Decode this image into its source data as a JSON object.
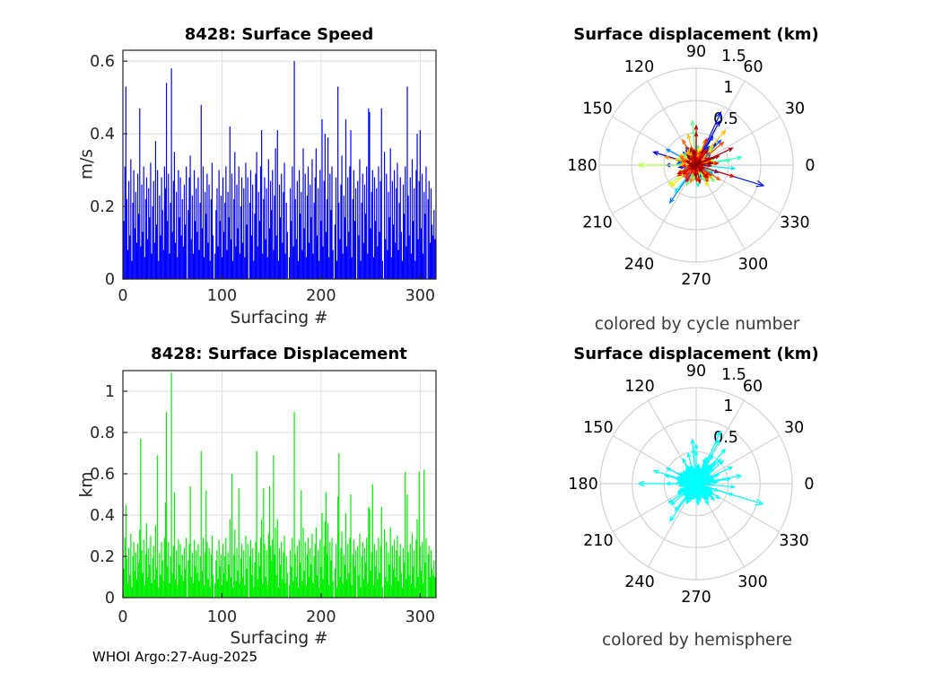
{
  "figure": {
    "footer": "WHOI Argo:27-Aug-2025"
  },
  "titles": {
    "speed": "8428: Surface Speed",
    "polar_top": "Surface displacement (km)",
    "displacement": "8428: Surface Displacement",
    "polar_bottom": "Surface displacement (km)"
  },
  "captions": {
    "polar_top": "colored by cycle number",
    "polar_bottom": "colored by hemisphere"
  },
  "axis_labels": {
    "speed_y": "m/s",
    "speed_x": "Surfacing #",
    "displacement_y": "km",
    "displacement_x": "Surfacing #"
  },
  "colors": {
    "speed_bar": "#0000FF",
    "displacement_bar": "#00EE00",
    "hemisphere_arrow": "#00FFFF",
    "grid": "#DCDCDC",
    "polar_grid": "#D2D2D2",
    "axis_box": "#262626",
    "tick_text": "#262626",
    "polar_text": "#000000"
  },
  "chart_data": [
    {
      "id": "speed",
      "type": "bar",
      "title": "8428: Surface Speed",
      "xlabel": "Surfacing #",
      "ylabel": "m/s",
      "xlim": [
        0,
        316
      ],
      "ylim": [
        0,
        0.63
      ],
      "xticks": [
        0,
        100,
        200,
        300
      ],
      "yticks": [
        0,
        0.2,
        0.4,
        0.6
      ],
      "grid": true,
      "bar_color": "#0000FF",
      "x_is_index": true,
      "values_ref": "speed_ms"
    },
    {
      "id": "polar_cycle",
      "type": "polar-quiver",
      "title": "Surface displacement (km)",
      "caption": "colored by cycle number",
      "rlim": [
        0,
        1.5
      ],
      "rticks": [
        0.5,
        1,
        1.5
      ],
      "theta_ticks_deg": [
        0,
        30,
        60,
        90,
        120,
        150,
        180,
        210,
        240,
        270,
        300,
        330
      ],
      "colormap": "jet",
      "theta_ref": "direction_deg",
      "r_ref": "displacement_km"
    },
    {
      "id": "displacement",
      "type": "bar",
      "title": "8428: Surface Displacement",
      "xlabel": "Surfacing #",
      "ylabel": "km",
      "xlim": [
        0,
        316
      ],
      "ylim": [
        0,
        1.1
      ],
      "xticks": [
        0,
        100,
        200,
        300
      ],
      "yticks": [
        0,
        0.2,
        0.4,
        0.6,
        0.8,
        1
      ],
      "grid": true,
      "bar_color": "#00EE00",
      "x_is_index": true,
      "values_ref": "displacement_km"
    },
    {
      "id": "polar_hemisphere",
      "type": "polar-quiver",
      "title": "Surface displacement (km)",
      "caption": "colored by hemisphere",
      "rlim": [
        0,
        1.5
      ],
      "rticks": [
        0.5,
        1,
        1.5
      ],
      "theta_ticks_deg": [
        0,
        30,
        60,
        90,
        120,
        150,
        180,
        210,
        240,
        270,
        300,
        330
      ],
      "arrow_color": "#00FFFF",
      "theta_ref": "direction_deg",
      "r_ref": "displacement_km"
    }
  ],
  "series": {
    "speed_ms": [
      0.16,
      0.31,
      0.53,
      0.22,
      0.08,
      0.27,
      0.12,
      0.33,
      0.05,
      0.21,
      0.3,
      0.14,
      0.24,
      0.1,
      0.29,
      0.18,
      0.47,
      0.09,
      0.26,
      0.13,
      0.31,
      0.06,
      0.22,
      0.28,
      0.11,
      0.25,
      0.17,
      0.32,
      0.07,
      0.2,
      0.27,
      0.1,
      0.38,
      0.15,
      0.3,
      0.05,
      0.23,
      0.12,
      0.28,
      0.19,
      0.08,
      0.31,
      0.25,
      0.54,
      0.16,
      0.29,
      0.07,
      0.21,
      0.58,
      0.13,
      0.27,
      0.35,
      0.1,
      0.24,
      0.06,
      0.3,
      0.17,
      0.28,
      0.12,
      0.22,
      0.09,
      0.26,
      0.15,
      0.31,
      0.0,
      0.19,
      0.28,
      0.34,
      0.11,
      0.23,
      0.07,
      0.3,
      0.16,
      0.25,
      0.13,
      0.28,
      0.08,
      0.21,
      0.48,
      0.14,
      0.31,
      0.06,
      0.24,
      0.18,
      0.29,
      0.1,
      0.26,
      0.05,
      0.22,
      0.32,
      0.12,
      0.0,
      0.07,
      0.19,
      0.25,
      0.09,
      0.3,
      0.16,
      0.23,
      0.06,
      0.28,
      0.13,
      0.21,
      0.31,
      0.08,
      0.24,
      0.17,
      0.42,
      0.11,
      0.29,
      0.05,
      0.22,
      0.35,
      0.09,
      0.26,
      0.14,
      0.31,
      0.07,
      0.2,
      0.28,
      0.1,
      0.25,
      0.06,
      0.32,
      0.15,
      0.28,
      0.0,
      0.21,
      0.3,
      0.12,
      0.26,
      0.05,
      0.18,
      0.29,
      0.35,
      0.09,
      0.24,
      0.16,
      0.31,
      0.41,
      0.07,
      0.22,
      0.28,
      0.11,
      0.25,
      0.06,
      0.33,
      0.14,
      0.27,
      0.19,
      0.3,
      0.08,
      0.23,
      0.36,
      0.12,
      0.41,
      0.05,
      0.26,
      0.17,
      0.29,
      0.1,
      0.24,
      0.32,
      0.07,
      0.21,
      0.13,
      0.0,
      0.06,
      0.25,
      0.16,
      0.31,
      0.09,
      0.6,
      0.22,
      0.11,
      0.27,
      0.05,
      0.3,
      0.18,
      0.24,
      0.08,
      0.36,
      0.14,
      0.29,
      0.06,
      0.23,
      0.31,
      0.1,
      0.26,
      0.17,
      0.33,
      0.07,
      0.21,
      0.28,
      0.36,
      0.12,
      0.25,
      0.05,
      0.3,
      0.16,
      0.44,
      0.09,
      0.27,
      0.4,
      0.13,
      0.22,
      0.39,
      0.06,
      0.29,
      0.19,
      0.31,
      0.08,
      0.0,
      0.15,
      0.28,
      0.05,
      0.53,
      0.21,
      0.11,
      0.26,
      0.34,
      0.07,
      0.23,
      0.17,
      0.44,
      0.09,
      0.28,
      0.13,
      0.31,
      0.41,
      0.06,
      0.22,
      0.3,
      0.16,
      0.25,
      0.0,
      0.27,
      0.12,
      0.33,
      0.05,
      0.21,
      0.29,
      0.1,
      0.26,
      0.18,
      0.31,
      0.07,
      0.47,
      0.46,
      0.14,
      0.24,
      0.3,
      0.06,
      0.28,
      0.16,
      0.25,
      0.09,
      0.31,
      0.13,
      0.27,
      0.47,
      0.05,
      0.0,
      0.35,
      0.11,
      0.29,
      0.08,
      0.24,
      0.17,
      0.36,
      0.06,
      0.27,
      0.15,
      0.3,
      0.1,
      0.25,
      0.32,
      0.08,
      0.21,
      0.28,
      0.13,
      0.05,
      0.26,
      0.18,
      0.31,
      0.09,
      0.53,
      0.23,
      0.12,
      0.28,
      0.07,
      0.33,
      0.16,
      0.25,
      0.05,
      0.3,
      0.4,
      0.11,
      0.27,
      0.41,
      0.14,
      0.29,
      0.07,
      0.24,
      0.18,
      0.31,
      0.0,
      0.22,
      0.27,
      0.1,
      0.25,
      0.15,
      0.12,
      0.19,
      0.11
    ],
    "displacement_km": [
      0.14,
      0.29,
      0.45,
      0.19,
      0.07,
      0.24,
      0.11,
      0.31,
      0.05,
      0.2,
      0.27,
      0.13,
      0.22,
      0.09,
      0.26,
      0.17,
      0.33,
      0.77,
      0.23,
      0.12,
      0.28,
      0.06,
      0.21,
      0.36,
      0.1,
      0.24,
      0.16,
      0.3,
      0.07,
      0.19,
      0.25,
      0.09,
      0.35,
      0.14,
      0.69,
      0.05,
      0.22,
      0.11,
      0.27,
      0.18,
      0.08,
      0.29,
      0.46,
      0.9,
      0.15,
      0.27,
      0.07,
      0.2,
      1.09,
      0.12,
      0.25,
      0.51,
      0.09,
      0.23,
      0.06,
      0.28,
      0.16,
      0.26,
      0.11,
      0.21,
      0.08,
      0.24,
      0.14,
      0.29,
      0.0,
      0.18,
      0.26,
      0.54,
      0.1,
      0.22,
      0.07,
      0.28,
      0.15,
      0.23,
      0.12,
      0.26,
      0.08,
      0.2,
      0.71,
      0.13,
      0.29,
      0.06,
      0.22,
      0.52,
      0.27,
      0.09,
      0.24,
      0.05,
      0.21,
      0.3,
      0.11,
      0.0,
      0.07,
      0.18,
      0.23,
      0.09,
      0.28,
      0.15,
      0.21,
      0.06,
      0.26,
      0.12,
      0.2,
      0.29,
      0.08,
      0.22,
      0.16,
      0.38,
      0.1,
      0.6,
      0.05,
      0.21,
      0.33,
      0.08,
      0.24,
      0.13,
      0.53,
      0.07,
      0.19,
      0.26,
      0.1,
      0.23,
      0.06,
      0.3,
      0.14,
      0.26,
      0.0,
      0.2,
      0.28,
      0.11,
      0.24,
      0.05,
      0.17,
      0.27,
      0.71,
      0.09,
      0.22,
      0.15,
      0.29,
      0.38,
      0.07,
      0.53,
      0.26,
      0.1,
      0.23,
      0.06,
      0.31,
      0.54,
      0.25,
      0.18,
      0.28,
      0.69,
      0.21,
      0.34,
      0.11,
      0.38,
      0.05,
      0.24,
      0.16,
      0.27,
      0.09,
      0.22,
      0.3,
      0.07,
      0.2,
      0.12,
      0.0,
      0.06,
      0.23,
      0.15,
      0.29,
      0.08,
      0.9,
      0.21,
      0.1,
      0.25,
      0.05,
      0.28,
      0.17,
      0.52,
      0.08,
      0.34,
      0.13,
      0.27,
      0.06,
      0.21,
      0.29,
      0.1,
      0.24,
      0.16,
      0.31,
      0.07,
      0.2,
      0.26,
      0.34,
      0.11,
      0.23,
      0.05,
      0.28,
      0.15,
      0.41,
      0.09,
      0.25,
      0.37,
      0.51,
      0.21,
      0.36,
      0.06,
      0.27,
      0.18,
      0.29,
      0.08,
      0.0,
      0.14,
      0.26,
      0.05,
      0.49,
      0.7,
      0.1,
      0.24,
      0.32,
      0.07,
      0.21,
      0.16,
      0.41,
      0.09,
      0.26,
      0.12,
      0.29,
      0.5,
      0.06,
      0.21,
      0.28,
      0.15,
      0.23,
      0.0,
      0.25,
      0.11,
      0.31,
      0.05,
      0.2,
      0.27,
      0.09,
      0.24,
      0.17,
      0.29,
      0.07,
      0.44,
      0.43,
      0.13,
      0.22,
      0.55,
      0.06,
      0.26,
      0.15,
      0.23,
      0.09,
      0.29,
      0.12,
      0.25,
      0.44,
      0.05,
      0.0,
      0.33,
      0.1,
      0.27,
      0.08,
      0.22,
      0.16,
      0.34,
      0.06,
      0.25,
      0.14,
      0.28,
      0.1,
      0.23,
      0.3,
      0.08,
      0.2,
      0.26,
      0.12,
      0.05,
      0.24,
      0.17,
      0.61,
      0.09,
      0.5,
      0.22,
      0.11,
      0.26,
      0.07,
      0.31,
      0.15,
      0.23,
      0.05,
      0.28,
      0.38,
      0.1,
      0.61,
      0.25,
      0.13,
      0.27,
      0.07,
      0.62,
      0.17,
      0.29,
      0.0,
      0.21,
      0.25,
      0.1,
      0.23,
      0.14,
      0.11,
      0.18,
      0.1
    ],
    "direction_deg": [
      12,
      175,
      48,
      292,
      95,
      333,
      140,
      22,
      251,
      68,
      187,
      311,
      80,
      156,
      35,
      265,
      118,
      62,
      205,
      57,
      300,
      148,
      19,
      342,
      88,
      232,
      161,
      304,
      43,
      270,
      102,
      338,
      55,
      210,
      163,
      15,
      284,
      71,
      125,
      328,
      28,
      243,
      180,
      65,
      310,
      150,
      37,
      278,
      343,
      112,
      226,
      60,
      318,
      172,
      8,
      135,
      297,
      52,
      240,
      190,
      75,
      305,
      20,
      168,
      258,
      98,
      327,
      45,
      215,
      130,
      350,
      82,
      195,
      288,
      25,
      108,
      320,
      63,
      235,
      170,
      40,
      282,
      10,
      152,
      336,
      85,
      260,
      120,
      200,
      330,
      58,
      185,
      312,
      92,
      28,
      248,
      145,
      352,
      70,
      222,
      115,
      295,
      38,
      178,
      265,
      100,
      315,
      48,
      205,
      355,
      160,
      20,
      275,
      130,
      305,
      78,
      232,
      90,
      162,
      340,
      30,
      268,
      192,
      85,
      322,
      138,
      15,
      250,
      105,
      345,
      62,
      218,
      155,
      298,
      10,
      242,
      73,
      190,
      325,
      50,
      165,
      8,
      283,
      117,
      35,
      210,
      150,
      95,
      338,
      62,
      110,
      95,
      27,
      245,
      170,
      318,
      45,
      132,
      288,
      15,
      225,
      78,
      160,
      302,
      55,
      198,
      340,
      88,
      260,
      125,
      12,
      310,
      180,
      65,
      235,
      148,
      32,
      275,
      103,
      215,
      42,
      165,
      290,
      18,
      330,
      98,
      205,
      140,
      72,
      255,
      5,
      185,
      315,
      120,
      48,
      230,
      160,
      352,
      80,
      278,
      50,
      135,
      8,
      300,
      220,
      168,
      40,
      258,
      112,
      22,
      145,
      335,
      62,
      190,
      282,
      30,
      105,
      50,
      248,
      175,
      320,
      90,
      212,
      15,
      70,
      295,
      128,
      38,
      202,
      165,
      340,
      85,
      252,
      110,
      18,
      232,
      60,
      170,
      308,
      135,
      55,
      222,
      348,
      95,
      270,
      152,
      25,
      118,
      328,
      200,
      75,
      40,
      285,
      10,
      240,
      162,
      32,
      105,
      298,
      230,
      68,
      355,
      142,
      210,
      88,
      325,
      48,
      185,
      260,
      5,
      120,
      272,
      195,
      58,
      345,
      28,
      238,
      150,
      102,
      315,
      80,
      172,
      215,
      135,
      343,
      250,
      90,
      30,
      165,
      310,
      72,
      205,
      118,
      358,
      145,
      282,
      22,
      178,
      90,
      65,
      335,
      108,
      240,
      25,
      158,
      52,
      290,
      132,
      8,
      222,
      98,
      312,
      182,
      268,
      45
    ]
  }
}
